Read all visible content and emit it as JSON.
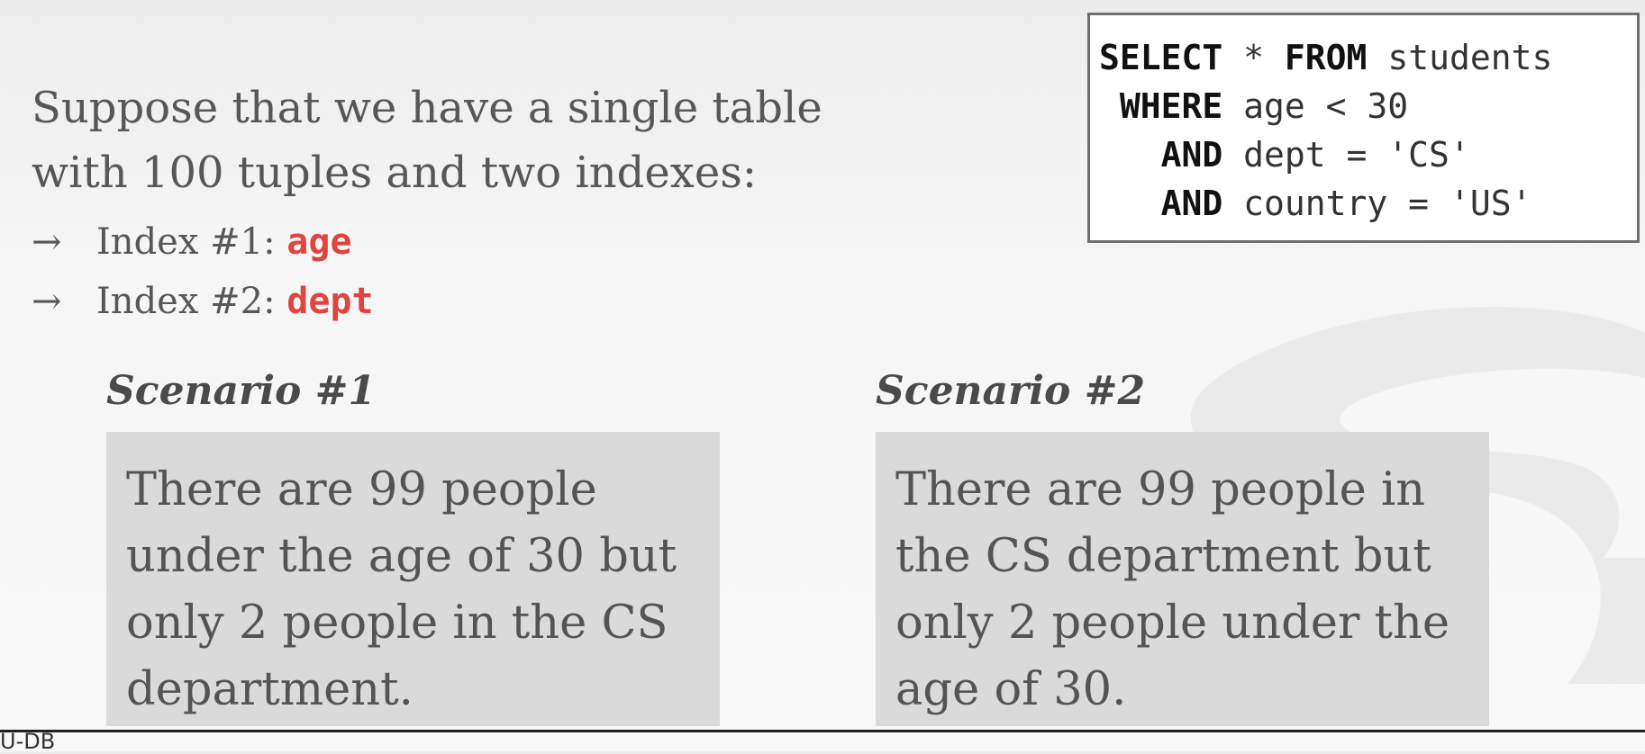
{
  "intro": {
    "line1": "Suppose that we have a single table",
    "line2": "with 100 tuples and two indexes:"
  },
  "bullets": [
    {
      "arrow": "→",
      "label": "Index #1: ",
      "key": "age"
    },
    {
      "arrow": "→",
      "label": "Index #2: ",
      "key": "dept"
    }
  ],
  "sql": {
    "line1_kw": "SELECT",
    "line1_rest": " * ",
    "line1_kw2": "FROM",
    "line1_rest2": " students",
    "line2_kw": " WHERE",
    "line2_rest": " age < 30",
    "line3_kw": "   AND",
    "line3_rest": " dept = 'CS'",
    "line4_kw": "   AND",
    "line4_rest": " country = 'US'"
  },
  "scenarios": [
    {
      "title": "Scenario #1",
      "lines": [
        "There are 99 people",
        "under the age of 30 but",
        "only 2 people in the CS",
        "department."
      ]
    },
    {
      "title": "Scenario #2",
      "lines": [
        "There are 99 people in",
        "the CS department but",
        "only 2 people under the",
        "age of 30."
      ]
    }
  ],
  "footer": {
    "tag": "U-DB"
  },
  "colors": {
    "highlight": "#e0443f",
    "box_fill": "#dadada"
  }
}
